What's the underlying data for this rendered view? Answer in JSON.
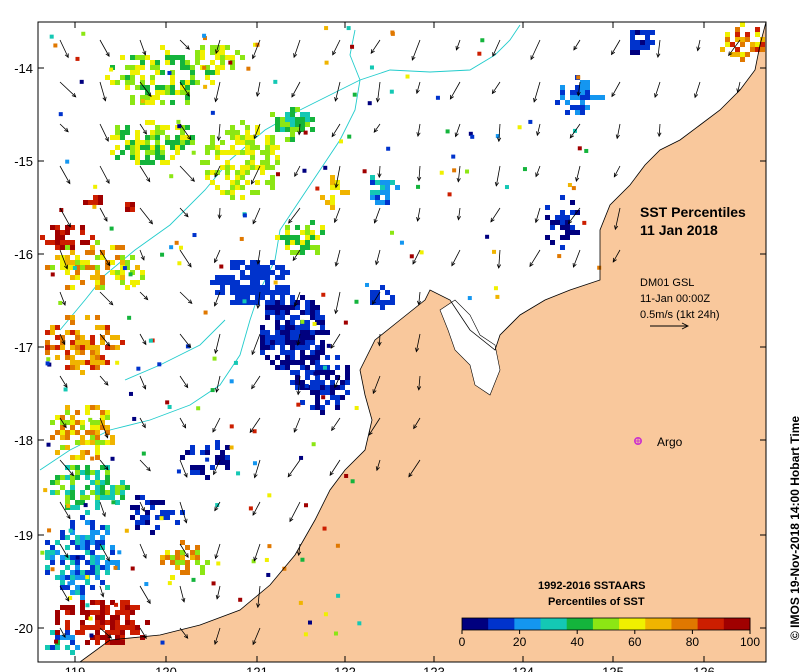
{
  "title_line1": "SST Percentiles",
  "title_line2": "11 Jan 2018",
  "current_info": {
    "model": "DM01 GSL",
    "time": "11-Jan 00:00Z",
    "scale": "0.5m/s (1kt 24h)"
  },
  "argo_label": "Argo",
  "legend": {
    "title_line1": "1992-2016 SSTAARS",
    "title_line2": "Percentiles of SST",
    "ticks": [
      "0",
      "20",
      "40",
      "60",
      "80",
      "100"
    ],
    "colors": [
      "#00007f",
      "#0033cc",
      "#1496f0",
      "#14c8b4",
      "#14b43c",
      "#8ce614",
      "#f0f000",
      "#f0b400",
      "#e07800",
      "#cc1e00",
      "#a00000"
    ]
  },
  "credit": "© IMOS 19-Nov-2018 14:00 Hobart Time",
  "axes": {
    "x_ticks": [
      "119",
      "120",
      "121",
      "122",
      "123",
      "124",
      "125",
      "126"
    ],
    "y_ticks": [
      "-14",
      "-15",
      "-16",
      "-17",
      "-18",
      "-19",
      "-20"
    ]
  },
  "colors": {
    "land": "#f9c89c",
    "argo": "#cc33cc",
    "bathymetry": "#22cccc"
  }
}
